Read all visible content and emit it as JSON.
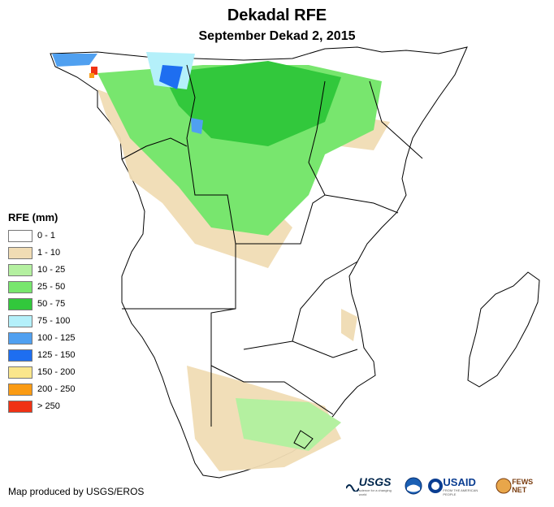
{
  "title": "Dekadal RFE",
  "subtitle": "September Dekad 2, 2015",
  "legend": {
    "title": "RFE (mm)",
    "items": [
      {
        "label": "0 - 1",
        "color": "#ffffff"
      },
      {
        "label": "1 - 10",
        "color": "#f0dcb4"
      },
      {
        "label": "10 - 25",
        "color": "#b4f0a0"
      },
      {
        "label": "25 - 50",
        "color": "#78e66e"
      },
      {
        "label": "50 - 75",
        "color": "#32c83c"
      },
      {
        "label": "75 - 100",
        "color": "#b4f0fa"
      },
      {
        "label": "100 - 125",
        "color": "#50a0f0"
      },
      {
        "label": "125 - 150",
        "color": "#1e6ef0"
      },
      {
        "label": "150 - 200",
        "color": "#fae68c"
      },
      {
        "label": "200 - 250",
        "color": "#fa9b14"
      },
      {
        "label": "> 250",
        "color": "#f03214"
      }
    ]
  },
  "credit": "Map produced by USGS/EROS",
  "logos": {
    "usgs": "USGS",
    "usgs_tagline": "science for a changing world",
    "usaid": "USAID",
    "usaid_tagline": "FROM THE AMERICAN PEOPLE",
    "fews": "FEWS NET"
  }
}
